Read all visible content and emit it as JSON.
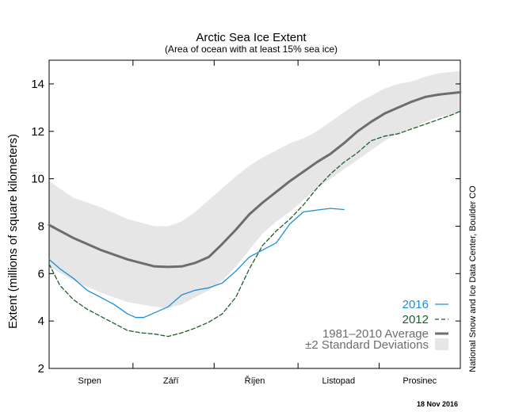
{
  "chart_data": {
    "type": "line",
    "title": "Arctic Sea Ice Extent",
    "subtitle": "(Area of ocean with at least 15% sea ice)",
    "ylabel": "Extent (millions of square kilometers)",
    "xlabel": "",
    "ylim": [
      2,
      15
    ],
    "yticks": [
      2,
      4,
      6,
      8,
      10,
      12,
      14
    ],
    "xlim": [
      1,
      153
    ],
    "months": [
      {
        "label": "Srpen",
        "center": 16,
        "start": 1
      },
      {
        "label": "Září",
        "center": 46,
        "start": 32
      },
      {
        "label": "Říjen",
        "center": 77,
        "start": 62
      },
      {
        "label": "Listopad",
        "center": 108,
        "start": 93
      },
      {
        "label": "Prosinec",
        "center": 138,
        "start": 123
      }
    ],
    "grid": false,
    "legend_position": "lower-right",
    "series": [
      {
        "name": "2016",
        "color": "#1a8fd8",
        "style": "solid",
        "x": [
          1,
          5,
          10,
          15,
          20,
          25,
          30,
          33,
          36,
          40,
          45,
          50,
          55,
          60,
          65,
          70,
          75,
          80,
          85,
          90,
          95,
          100,
          105,
          110
        ],
        "values": [
          6.6,
          6.2,
          5.8,
          5.3,
          5.0,
          4.7,
          4.3,
          4.15,
          4.15,
          4.35,
          4.6,
          5.1,
          5.3,
          5.4,
          5.6,
          6.1,
          6.7,
          7.0,
          7.3,
          8.1,
          8.6,
          8.68,
          8.75,
          8.7
        ]
      },
      {
        "name": "2012",
        "color": "#1b5e2b",
        "style": "dashed",
        "x": [
          1,
          5,
          10,
          15,
          20,
          25,
          30,
          35,
          40,
          45,
          50,
          55,
          60,
          65,
          70,
          75,
          80,
          85,
          90,
          95,
          100,
          105,
          110,
          115,
          120,
          125,
          130,
          135,
          140,
          145,
          150,
          153
        ],
        "values": [
          6.4,
          5.5,
          4.9,
          4.5,
          4.2,
          3.9,
          3.6,
          3.5,
          3.45,
          3.35,
          3.5,
          3.7,
          3.95,
          4.3,
          5.0,
          6.2,
          7.2,
          7.8,
          8.3,
          8.9,
          9.6,
          10.2,
          10.7,
          11.1,
          11.6,
          11.8,
          11.9,
          12.1,
          12.3,
          12.5,
          12.7,
          12.85
        ]
      },
      {
        "name": "1981–2010 Average",
        "color": "#6d6d6d",
        "style": "solid-thick",
        "x": [
          1,
          10,
          20,
          30,
          40,
          45,
          50,
          55,
          60,
          65,
          70,
          75,
          80,
          85,
          90,
          95,
          100,
          105,
          110,
          115,
          120,
          125,
          130,
          135,
          140,
          145,
          153
        ],
        "values": [
          8.05,
          7.5,
          7.0,
          6.6,
          6.3,
          6.28,
          6.3,
          6.45,
          6.7,
          7.25,
          7.85,
          8.5,
          9.0,
          9.45,
          9.9,
          10.3,
          10.7,
          11.05,
          11.5,
          12.0,
          12.4,
          12.75,
          13.0,
          13.25,
          13.45,
          13.55,
          13.65
        ]
      }
    ],
    "band": {
      "name": "±2 Standard Deviations",
      "color": "#e6e6e6",
      "x": [
        1,
        10,
        20,
        30,
        40,
        45,
        50,
        55,
        60,
        65,
        70,
        75,
        80,
        85,
        90,
        95,
        100,
        105,
        110,
        115,
        120,
        125,
        130,
        135,
        140,
        145,
        153
      ],
      "upper": [
        9.9,
        9.2,
        8.8,
        8.3,
        8.0,
        8.0,
        8.2,
        8.6,
        9.1,
        9.6,
        10.1,
        10.55,
        10.9,
        11.2,
        11.5,
        11.7,
        12.0,
        12.4,
        12.8,
        13.2,
        13.5,
        13.8,
        14.0,
        14.1,
        14.3,
        14.45,
        14.55
      ],
      "lower": [
        6.3,
        5.7,
        5.2,
        4.8,
        4.6,
        4.55,
        4.7,
        5.0,
        5.3,
        5.7,
        6.3,
        7.0,
        7.7,
        8.2,
        8.6,
        9.1,
        9.6,
        10.0,
        10.4,
        10.8,
        11.2,
        11.6,
        11.9,
        12.1,
        12.4,
        12.6,
        12.8
      ]
    },
    "annotations": {
      "credit": "National Snow and Ice Data Center, Boulder CO",
      "date": "18 Nov 2016"
    }
  }
}
